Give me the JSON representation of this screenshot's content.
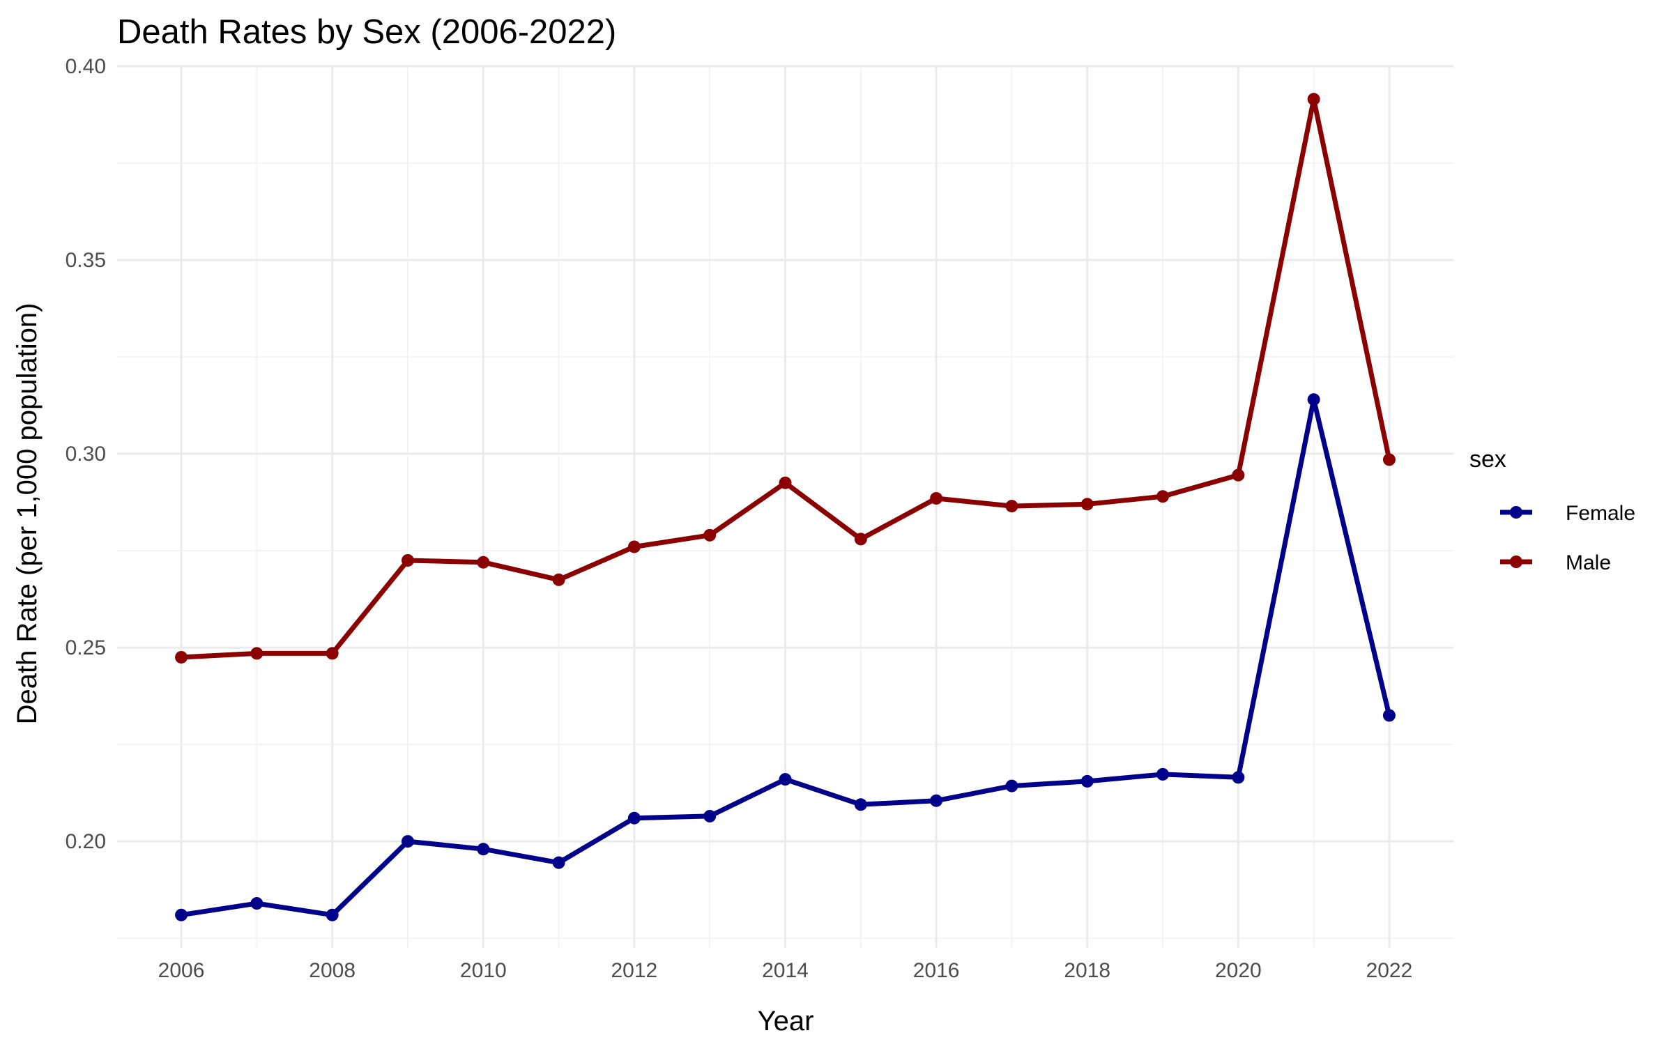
{
  "chart_data": {
    "type": "line",
    "title": "Death Rates by Sex (2006-2022)",
    "xlabel": "Year",
    "ylabel": "Death Rate (per 1,000 population)",
    "x": [
      2006,
      2007,
      2008,
      2009,
      2010,
      2011,
      2012,
      2013,
      2014,
      2015,
      2016,
      2017,
      2018,
      2019,
      2020,
      2021,
      2022
    ],
    "xlim": [
      2005.15,
      2022.85
    ],
    "ylim": [
      0.1725,
      0.4
    ],
    "x_ticks": [
      "2006",
      "2008",
      "2010",
      "2012",
      "2014",
      "2016",
      "2018",
      "2020",
      "2022"
    ],
    "y_ticks": [
      "0.20",
      "0.25",
      "0.30",
      "0.35",
      "0.40"
    ],
    "grid": true,
    "legend": {
      "title": "sex",
      "position": "right"
    },
    "series": [
      {
        "name": "Female",
        "color": "#00008B",
        "values": [
          0.181,
          0.184,
          0.181,
          0.2,
          0.198,
          0.1945,
          0.206,
          0.2065,
          0.216,
          0.2095,
          0.2105,
          0.2143,
          0.2155,
          0.2173,
          0.2165,
          0.314,
          0.2325
        ]
      },
      {
        "name": "Male",
        "color": "#8B0000",
        "values": [
          0.2475,
          0.2485,
          0.2485,
          0.2725,
          0.272,
          0.2675,
          0.276,
          0.279,
          0.2925,
          0.278,
          0.2885,
          0.2865,
          0.287,
          0.289,
          0.2945,
          0.3915,
          0.2985
        ]
      }
    ]
  }
}
